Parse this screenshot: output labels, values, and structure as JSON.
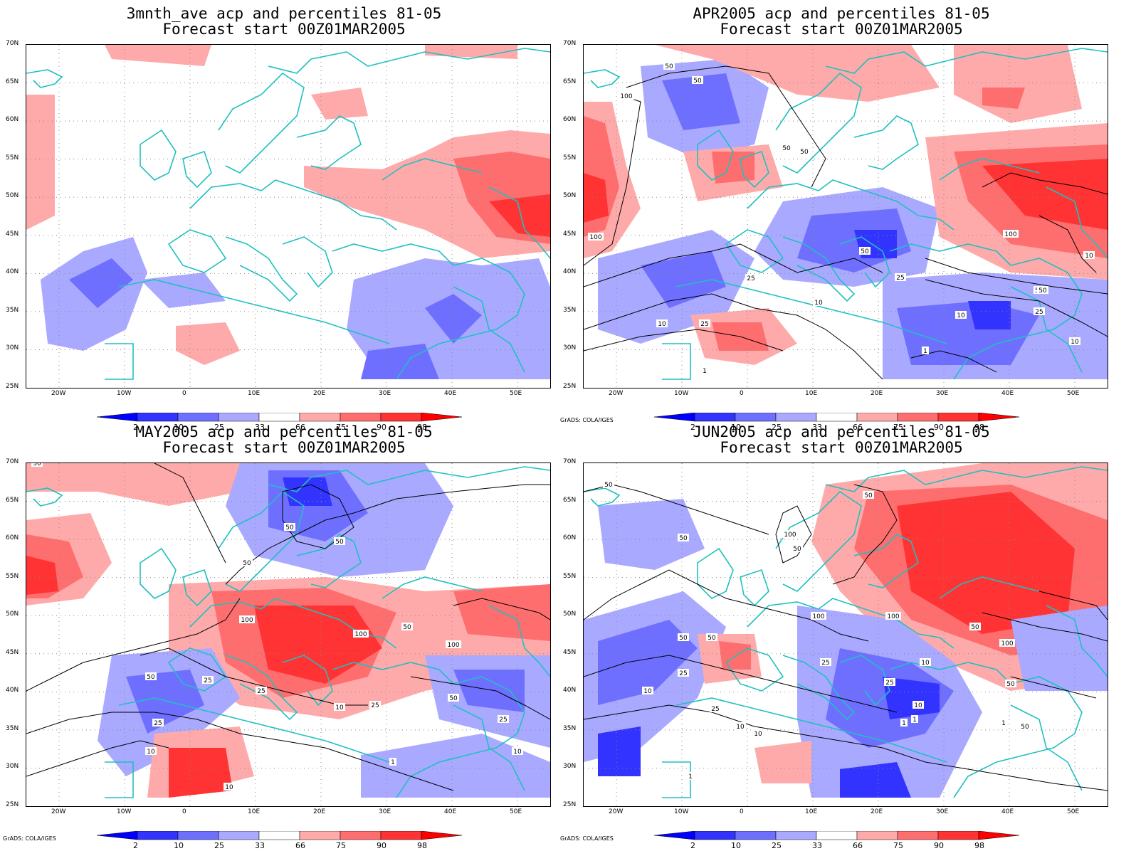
{
  "panels": [
    {
      "title1": "3mnth_ave acp and percentiles 81-05",
      "title2": "Forecast start 00Z01MAR2005",
      "credit": "",
      "contours": []
    },
    {
      "title1": "APR2005 acp and percentiles 81-05",
      "title2": "Forecast start 00Z01MAR2005",
      "credit": "GrADS: COLA/IGES",
      "contours": [
        "50",
        "50",
        "100",
        "50",
        "50",
        "100",
        "50",
        "25",
        "25",
        "10",
        "10",
        "100",
        "50",
        "25",
        "10",
        "10",
        "1",
        "1",
        "10",
        "50",
        "25"
      ]
    },
    {
      "title1": "MAY2005 acp and percentiles 81-05",
      "title2": "Forecast start 00Z01MAR2005",
      "credit": "GrADS: COLA/IGES",
      "contours": [
        "50",
        "50",
        "50",
        "50",
        "100",
        "100",
        "50",
        "100",
        "50",
        "25",
        "25",
        "50",
        "25",
        "10",
        "25",
        "10",
        "1",
        "10",
        "25",
        "10"
      ]
    },
    {
      "title1": "JUN2005 acp and percentiles 81-05",
      "title2": "Forecast start 00Z01MAR2005",
      "credit": "GrADS: COLA/IGES",
      "contours": [
        "50",
        "50",
        "100",
        "50",
        "50",
        "50",
        "25",
        "50",
        "100",
        "100",
        "25",
        "50",
        "100",
        "50",
        "25",
        "10",
        "10",
        "10",
        "10",
        "25",
        "1",
        "1",
        "10",
        "1",
        "50",
        "1"
      ]
    }
  ],
  "lat_labels": [
    "70N",
    "65N",
    "60N",
    "55N",
    "50N",
    "45N",
    "40N",
    "35N",
    "30N",
    "25N"
  ],
  "lon_labels": [
    "20W",
    "10W",
    "0",
    "10E",
    "20E",
    "30E",
    "40E",
    "50E"
  ],
  "colorbar": {
    "labels": [
      "2",
      "10",
      "25",
      "33",
      "66",
      "75",
      "90",
      "98"
    ],
    "colors": [
      "#0000ff",
      "#3333ff",
      "#6f6fff",
      "#a9a9ff",
      "#ffffff",
      "#ffaaaa",
      "#ff6e6e",
      "#ff3333",
      "#ff0000"
    ]
  },
  "colors": {
    "coast": "#20c0c0",
    "contour": "#000000",
    "blue_dark": "#3333ff",
    "blue_mid": "#6f6fff",
    "blue_light": "#a9a9ff",
    "red_light": "#ffaaaa",
    "red_mid": "#ff6e6e",
    "red_dark": "#ff3333"
  }
}
